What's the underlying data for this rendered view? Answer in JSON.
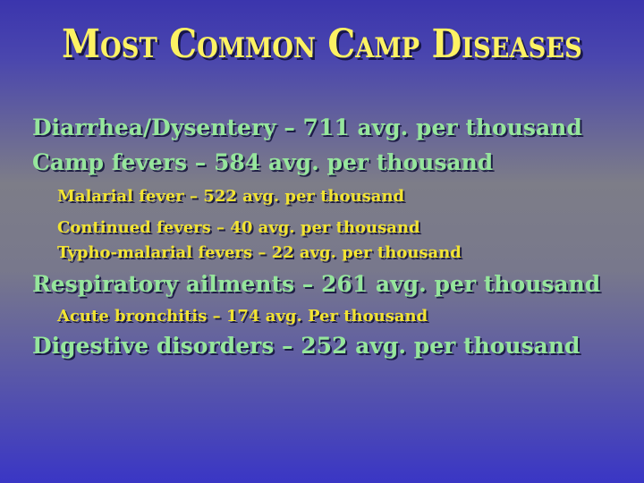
{
  "slide": {
    "title": "Most Common Camp Diseases",
    "lines": [
      {
        "level": 1,
        "text": "Diarrhea/Dysentery – 711 avg. per thousand"
      },
      {
        "level": 1,
        "text": "Camp fevers – 584 avg. per thousand"
      },
      {
        "level": 2,
        "text": "Malarial fever – 522 avg. per thousand"
      },
      {
        "level": 2,
        "text": "Continued fevers – 40 avg. per thousand"
      },
      {
        "level": 2,
        "text": "Typho-malarial fevers – 22 avg. per thousand"
      },
      {
        "level": 1,
        "text": "Respiratory ailments – 261 avg. per thousand"
      },
      {
        "level": 2,
        "text": "Acute bronchitis – 174 avg. Per thousand"
      },
      {
        "level": 1,
        "text": "Digestive disorders – 252 avg. per thousand"
      }
    ],
    "colors": {
      "background_top": "#3b35ad",
      "background_middle": "#7d7d88",
      "background_bottom": "#3a36c5",
      "title_text": "#fdf263",
      "level1_text": "#96e69c",
      "level2_text": "#f2e431",
      "text_shadow": "#0f0f37"
    }
  }
}
